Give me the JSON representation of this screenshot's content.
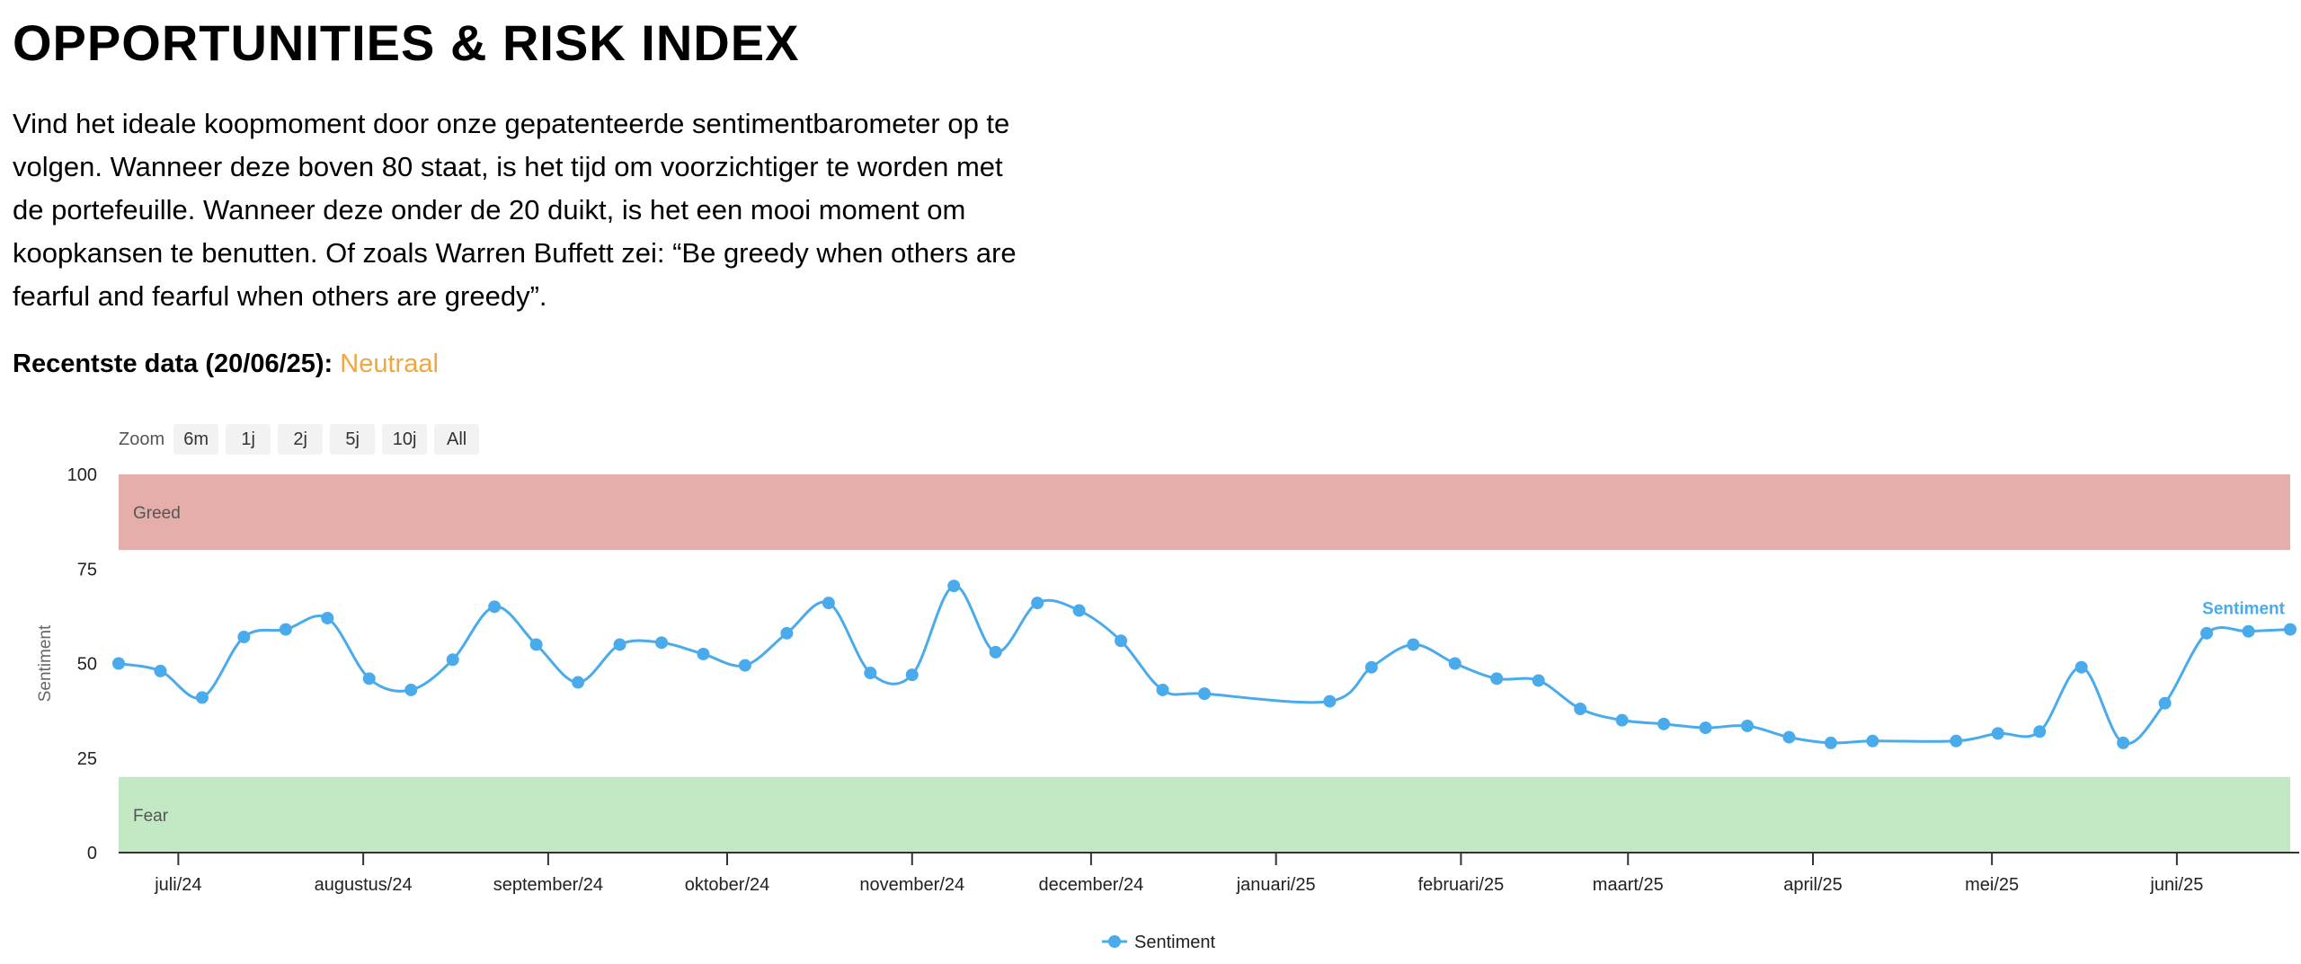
{
  "header": {
    "title": "OPPORTUNITIES & RISK INDEX",
    "intro": "Vind het ideale koopmoment door onze gepatenteerde sentimentbarometer op te volgen. Wanneer deze boven 80 staat, is het tijd om voorzichtiger te worden met de portefeuille. Wanneer deze onder de 20 duikt, is het een mooi moment om koopkansen te benutten. Of zoals Warren Buffett zei: “Be greedy when others are fearful and fearful when others are greedy”.",
    "recent_label": "Recentste data (20/06/25):",
    "recent_value": "Neutraal"
  },
  "zoom": {
    "label": "Zoom",
    "buttons": [
      "6m",
      "1j",
      "2j",
      "5j",
      "10j",
      "All"
    ]
  },
  "colors": {
    "greed_band": "#e5aeab",
    "fear_band": "#c2e9c3",
    "line": "#4aabec",
    "recent_value": "#f2a63b"
  },
  "chart_data": {
    "type": "line",
    "title": "",
    "ylabel": "Sentiment",
    "ylim": [
      0,
      100
    ],
    "y_ticks": [
      0,
      25,
      50,
      75,
      100
    ],
    "x_tick_labels": [
      "juli/24",
      "augustus/24",
      "september/24",
      "oktober/24",
      "november/24",
      "december/24",
      "januari/25",
      "februari/25",
      "maart/25",
      "april/25",
      "mei/25",
      "juni/25"
    ],
    "bands": [
      {
        "label": "Greed",
        "from": 80,
        "to": 100
      },
      {
        "label": "Fear",
        "from": 0,
        "to": 20
      }
    ],
    "series": [
      {
        "name": "Sentiment",
        "x": [
          "2024-06-21",
          "2024-06-28",
          "2024-07-05",
          "2024-07-12",
          "2024-07-19",
          "2024-07-26",
          "2024-08-02",
          "2024-08-09",
          "2024-08-16",
          "2024-08-23",
          "2024-08-30",
          "2024-09-06",
          "2024-09-13",
          "2024-09-20",
          "2024-09-27",
          "2024-10-04",
          "2024-10-11",
          "2024-10-18",
          "2024-10-25",
          "2024-11-01",
          "2024-11-08",
          "2024-11-15",
          "2024-11-22",
          "2024-11-29",
          "2024-12-06",
          "2024-12-13",
          "2024-12-20",
          "2025-01-10",
          "2025-01-17",
          "2025-01-24",
          "2025-01-31",
          "2025-02-07",
          "2025-02-14",
          "2025-02-21",
          "2025-02-28",
          "2025-03-07",
          "2025-03-14",
          "2025-03-21",
          "2025-03-28",
          "2025-04-04",
          "2025-04-11",
          "2025-04-25",
          "2025-05-02",
          "2025-05-09",
          "2025-05-16",
          "2025-05-23",
          "2025-05-30",
          "2025-06-06",
          "2025-06-13",
          "2025-06-20"
        ],
        "values": [
          50,
          48,
          41,
          57,
          59,
          62,
          46,
          43,
          51,
          65,
          55,
          45,
          55,
          55.5,
          52.5,
          49.5,
          58,
          66,
          47.5,
          47,
          70.5,
          53,
          66,
          64,
          56,
          43,
          42,
          40,
          49,
          55,
          50,
          46,
          45.5,
          38,
          35,
          34,
          33,
          33.5,
          30.5,
          29,
          29.5,
          29.5,
          31.5,
          32,
          49,
          29,
          39.5,
          58,
          58.5,
          59
        ]
      }
    ]
  }
}
